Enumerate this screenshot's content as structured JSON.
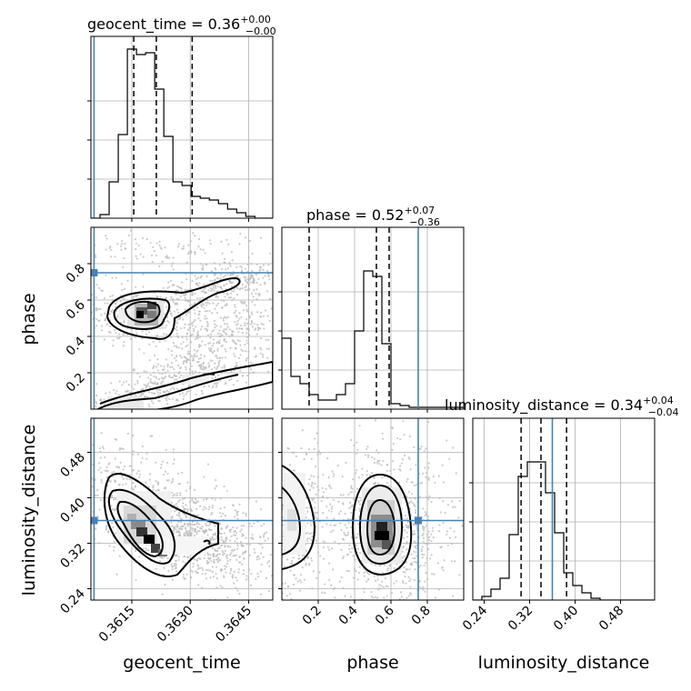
{
  "chart_data": {
    "type": "corner",
    "parameters": [
      {
        "name": "geocent_time",
        "label": "geocent_time",
        "title_value": "0.36",
        "title_plus": "+0.00",
        "title_minus": "−0.00",
        "range": [
          0.36045,
          0.36512
        ],
        "ticks": [
          0.3615,
          0.363,
          0.3645
        ],
        "tick_labels": [
          "0.3615",
          "0.3630",
          "0.3645"
        ],
        "truth": 0.36053,
        "quantiles": [
          0.36155,
          0.36213,
          0.36305
        ],
        "hist_edges_start": 0.36045,
        "hist_bin_width": 0.000234,
        "hist_values": [
          0,
          0.02,
          0.2,
          0.46,
          0.93,
          0.9,
          0.91,
          0.71,
          0.45,
          0.2,
          0.18,
          0.12,
          0.11,
          0.1,
          0.08,
          0.05,
          0.03,
          0.01,
          0,
          0
        ]
      },
      {
        "name": "phase",
        "label": "phase",
        "title_value": "0.52",
        "title_plus": "+0.07",
        "title_minus": "−0.36",
        "range": [
          0.0,
          1.0
        ],
        "ticks": [
          0.2,
          0.4,
          0.6,
          0.8
        ],
        "tick_labels": [
          "0.2",
          "0.4",
          "0.6",
          "0.8"
        ],
        "truth": 0.75,
        "quantiles": [
          0.15,
          0.52,
          0.59
        ],
        "hist_edges_start": 0.0,
        "hist_bin_width": 0.05,
        "hist_values": [
          0.39,
          0.18,
          0.14,
          0.08,
          0.05,
          0.05,
          0.08,
          0.14,
          0.43,
          0.76,
          0.73,
          0.36,
          0.03,
          0.02,
          0.01,
          0.01,
          0.01,
          0.01,
          0.01,
          0.01
        ]
      },
      {
        "name": "luminosity_distance",
        "label": "luminosity_distance",
        "title_value": "0.34",
        "title_plus": "+0.04",
        "title_minus": "−0.04",
        "range": [
          0.22,
          0.54
        ],
        "ticks": [
          0.24,
          0.32,
          0.4,
          0.48
        ],
        "tick_labels": [
          "0.24",
          "0.32",
          "0.40",
          "0.48"
        ],
        "truth": 0.36,
        "quantiles": [
          0.305,
          0.34,
          0.385
        ],
        "hist_edges_start": 0.22,
        "hist_bin_width": 0.016,
        "hist_values": [
          0,
          0.02,
          0.06,
          0.12,
          0.36,
          0.68,
          0.76,
          0.76,
          0.59,
          0.37,
          0.15,
          0.08,
          0.04,
          0.01,
          0,
          0,
          0,
          0,
          0,
          0
        ]
      }
    ],
    "vertical_axis_ticks": {
      "phase": [
        0.2,
        0.4,
        0.6,
        0.8
      ],
      "luminosity_distance": [
        0.24,
        0.32,
        0.4,
        0.48
      ]
    },
    "grid": true,
    "truth_color": "#4682b4",
    "contour_levels": 3,
    "cmap": "greys",
    "scatter_color": "#b9b9b9"
  }
}
